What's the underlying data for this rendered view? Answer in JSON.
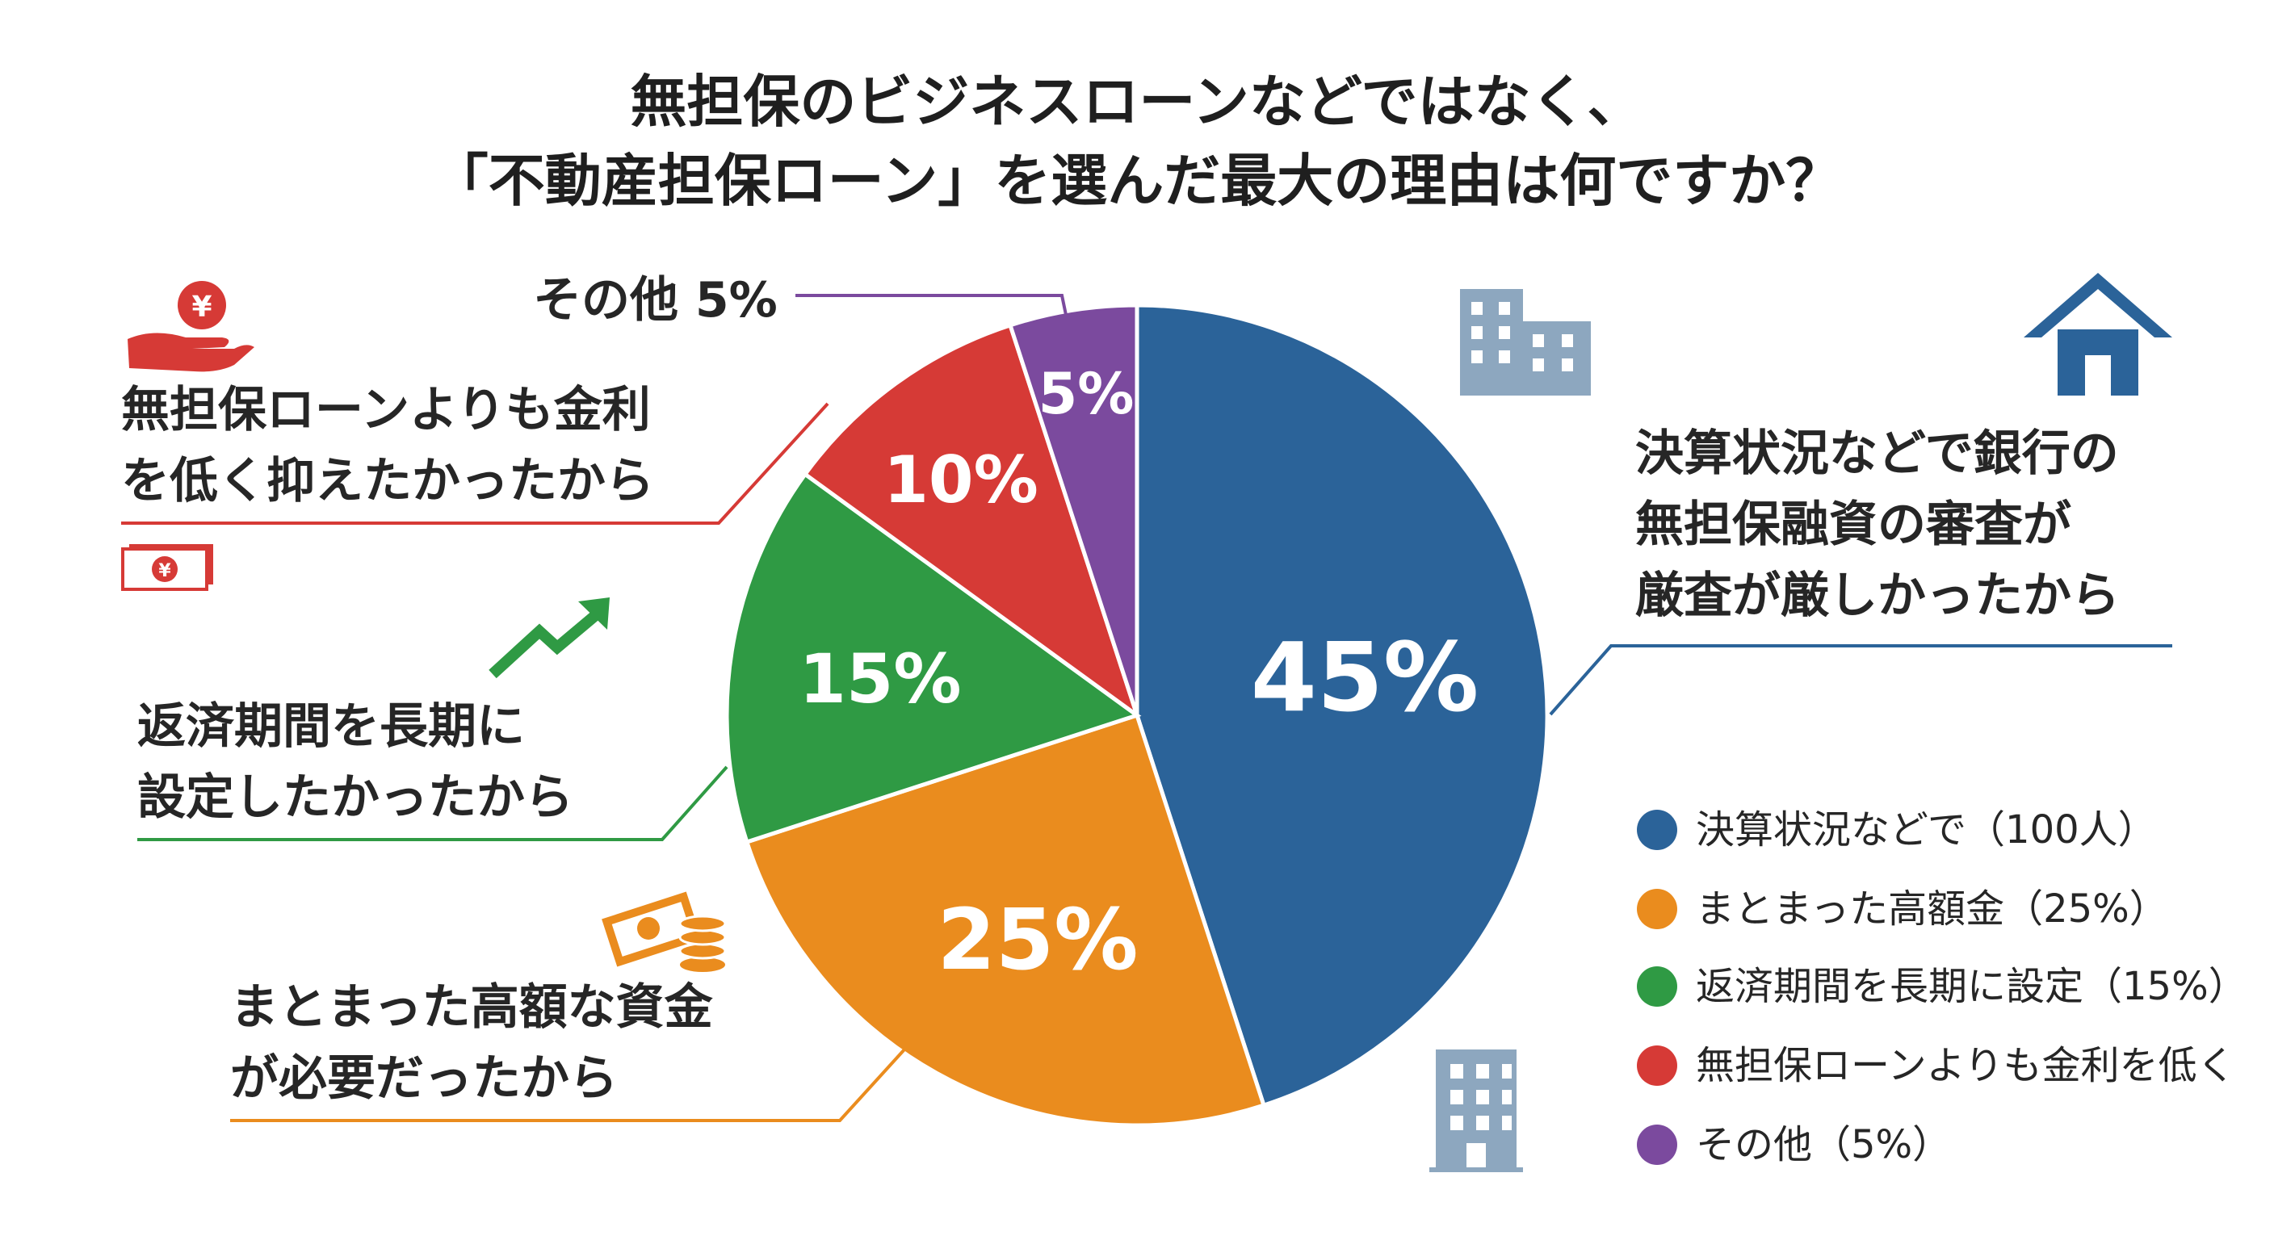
{
  "title": {
    "line1": "無担保のビジネスローンなどではなく、",
    "line2": "「不動産担保ローン」を選んだ最大の理由は何ですか？"
  },
  "chart_data": {
    "type": "pie",
    "title": "無担保のビジネスローンなどではなく、「不動産担保ローン」を選んだ最大の理由は何ですか？",
    "slices": [
      {
        "id": "settlement",
        "value": 45,
        "label": "45%",
        "color": "#2b6399",
        "category_lines": [
          "決算状況などで銀行の",
          "無担保融資の審査が",
          "厳査が厳しかったから"
        ],
        "legend": "決算状況などで（100人）",
        "icon": "house-icon"
      },
      {
        "id": "large-funds",
        "value": 25,
        "label": "25%",
        "color": "#ea8c1e",
        "category_lines": [
          "まとまった高額な資金",
          "が必要だったから"
        ],
        "legend": "まとまった高額金（25%）",
        "icon": "money-coins-icon"
      },
      {
        "id": "long-term",
        "value": 15,
        "label": "15%",
        "color": "#2f9a44",
        "category_lines": [
          "返済期間を長期に",
          "設定したかったから"
        ],
        "legend": "返済期間を長期に設定（15%）",
        "icon": "trend-arrow-icon"
      },
      {
        "id": "low-rate",
        "value": 10,
        "label": "10%",
        "color": "#d63a36",
        "category_lines": [
          "無担保ローンよりも金利",
          "を低く抑えたかったから"
        ],
        "legend": "無担保ローンよりも金利を低く",
        "icon": "yen-hand-icon"
      },
      {
        "id": "other",
        "value": 5,
        "label": "5%",
        "color": "#7b4a9e",
        "category_lines": [
          "その他 5%"
        ],
        "legend": "その他（5%）",
        "icon": ""
      }
    ]
  }
}
